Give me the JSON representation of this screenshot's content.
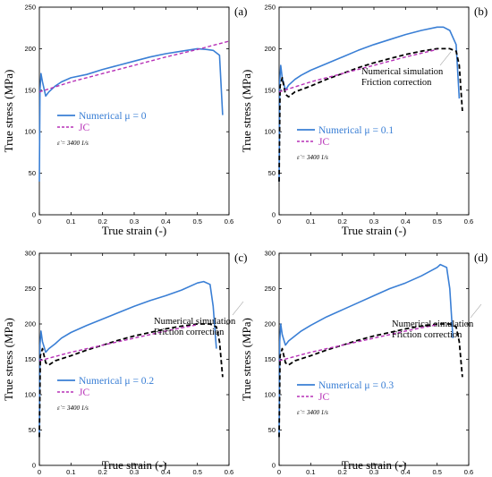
{
  "chart_data": [
    {
      "type": "line",
      "panel": "(a)",
      "xlabel": "True strain (-)",
      "ylabel": "True stress (MPa)",
      "xlim": [
        0,
        0.6
      ],
      "ylim": [
        0,
        250
      ],
      "xticks": [
        "0",
        "0.1",
        "0.2",
        "0.3",
        "0.4",
        "0.5",
        "0.6"
      ],
      "yticks": [
        "0",
        "50",
        "100",
        "150",
        "200",
        "250"
      ],
      "legend": [
        "Numerical μ = 0",
        "JC"
      ],
      "strain_rate": "ε̇ = 3400 1/s",
      "annotation": [],
      "colors": {
        "numerical": "#3a7fd5",
        "jc": "#b730b7",
        "friction": "#000000"
      },
      "series": [
        {
          "name": "Numerical μ = 0",
          "style": "solid",
          "x": [
            0,
            0.002,
            0.005,
            0.01,
            0.02,
            0.03,
            0.05,
            0.07,
            0.1,
            0.15,
            0.2,
            0.25,
            0.3,
            0.35,
            0.4,
            0.45,
            0.5,
            0.53,
            0.55,
            0.57,
            0.58
          ],
          "y": [
            40,
            150,
            170,
            160,
            143,
            148,
            155,
            160,
            165,
            169,
            175,
            180,
            185,
            190,
            194,
            197,
            200,
            199,
            198,
            192,
            120
          ]
        },
        {
          "name": "JC",
          "style": "dashed",
          "x": [
            0,
            0.1,
            0.2,
            0.3,
            0.4,
            0.5,
            0.6
          ],
          "y": [
            148,
            160,
            170,
            180,
            190,
            199,
            209
          ]
        }
      ]
    },
    {
      "type": "line",
      "panel": "(b)",
      "xlabel": "True strain (-)",
      "ylabel": "True stress (MPa)",
      "xlim": [
        0,
        0.6
      ],
      "ylim": [
        0,
        250
      ],
      "xticks": [
        "0",
        "0.1",
        "0.2",
        "0.3",
        "0.4",
        "0.5",
        "0.6"
      ],
      "yticks": [
        "0",
        "50",
        "100",
        "150",
        "200",
        "250"
      ],
      "legend": [
        "Numerical μ = 0.1",
        "JC"
      ],
      "strain_rate": "ε̇ = 3400 1/s",
      "annotation": [
        "Numerical simulation",
        "Friction correction"
      ],
      "colors": {
        "numerical": "#3a7fd5",
        "jc": "#b730b7",
        "friction": "#000000"
      },
      "series": [
        {
          "name": "Numerical μ = 0.1",
          "style": "solid",
          "x": [
            0,
            0.002,
            0.005,
            0.01,
            0.02,
            0.03,
            0.05,
            0.07,
            0.1,
            0.15,
            0.2,
            0.25,
            0.3,
            0.35,
            0.4,
            0.45,
            0.5,
            0.52,
            0.54,
            0.56,
            0.57
          ],
          "y": [
            40,
            160,
            180,
            165,
            150,
            156,
            163,
            168,
            174,
            182,
            190,
            198,
            205,
            211,
            217,
            222,
            226,
            226,
            222,
            205,
            140
          ]
        },
        {
          "name": "Friction correction",
          "style": "dashed",
          "x": [
            0,
            0.003,
            0.01,
            0.02,
            0.03,
            0.05,
            0.1,
            0.15,
            0.2,
            0.25,
            0.3,
            0.35,
            0.4,
            0.45,
            0.5,
            0.52,
            0.54,
            0.56,
            0.57,
            0.58
          ],
          "y": [
            40,
            155,
            165,
            145,
            142,
            148,
            155,
            163,
            170,
            177,
            183,
            188,
            193,
            197,
            200,
            200,
            200,
            197,
            180,
            125
          ]
        },
        {
          "name": "JC",
          "style": "dashed",
          "x": [
            0,
            0.1,
            0.2,
            0.3,
            0.4,
            0.5
          ],
          "y": [
            148,
            160,
            170,
            180,
            190,
            199
          ]
        }
      ]
    },
    {
      "type": "line",
      "panel": "(c)",
      "xlabel": "True strain (-)",
      "ylabel": "True stress (MPa)",
      "xlim": [
        0,
        0.6
      ],
      "ylim": [
        0,
        300
      ],
      "xticks": [
        "0",
        "0.1",
        "0.2",
        "0.3",
        "0.4",
        "0.5",
        "0.6"
      ],
      "yticks": [
        "0",
        "50",
        "100",
        "150",
        "200",
        "250",
        "300"
      ],
      "legend": [
        "Numerical μ = 0.2",
        "JC"
      ],
      "strain_rate": "ε̇ = 3400 1/s",
      "annotation": [
        "Numerical simulation",
        "Friction correction"
      ],
      "colors": {
        "numerical": "#3a7fd5",
        "jc": "#b730b7",
        "friction": "#000000"
      },
      "series": [
        {
          "name": "Numerical μ = 0.2",
          "style": "solid",
          "x": [
            0,
            0.002,
            0.005,
            0.01,
            0.02,
            0.03,
            0.05,
            0.07,
            0.1,
            0.15,
            0.2,
            0.25,
            0.3,
            0.35,
            0.4,
            0.45,
            0.5,
            0.52,
            0.54,
            0.55,
            0.56
          ],
          "y": [
            40,
            170,
            190,
            175,
            160,
            165,
            172,
            180,
            188,
            198,
            207,
            216,
            225,
            233,
            240,
            248,
            258,
            260,
            256,
            225,
            165
          ]
        },
        {
          "name": "Friction correction",
          "style": "dashed",
          "x": [
            0,
            0.003,
            0.01,
            0.02,
            0.03,
            0.05,
            0.1,
            0.15,
            0.2,
            0.25,
            0.3,
            0.35,
            0.4,
            0.45,
            0.5,
            0.52,
            0.54,
            0.56,
            0.57,
            0.58
          ],
          "y": [
            40,
            155,
            165,
            145,
            142,
            148,
            155,
            163,
            170,
            177,
            183,
            188,
            193,
            197,
            200,
            200,
            200,
            196,
            175,
            125
          ]
        },
        {
          "name": "JC",
          "style": "dashed",
          "x": [
            0,
            0.1,
            0.2,
            0.3,
            0.4,
            0.5
          ],
          "y": [
            148,
            160,
            170,
            180,
            190,
            199
          ]
        }
      ]
    },
    {
      "type": "line",
      "panel": "(d)",
      "xlabel": "True strain (-)",
      "ylabel": "True stress (MPa)",
      "xlim": [
        0,
        0.6
      ],
      "ylim": [
        0,
        300
      ],
      "xticks": [
        "0",
        "0.1",
        "0.2",
        "0.3",
        "0.4",
        "0.5",
        "0.6"
      ],
      "yticks": [
        "0",
        "50",
        "100",
        "150",
        "200",
        "250",
        "300"
      ],
      "legend": [
        "Numerical μ = 0.3",
        "JC"
      ],
      "strain_rate": "ε̇ = 3400 1/s",
      "annotation": [
        "Numerical simulation",
        "Friction correction"
      ],
      "colors": {
        "numerical": "#3a7fd5",
        "jc": "#b730b7",
        "friction": "#000000"
      },
      "series": [
        {
          "name": "Numerical μ = 0.3",
          "style": "solid",
          "x": [
            0,
            0.002,
            0.005,
            0.01,
            0.02,
            0.03,
            0.05,
            0.07,
            0.1,
            0.15,
            0.2,
            0.25,
            0.3,
            0.35,
            0.4,
            0.45,
            0.5,
            0.51,
            0.53,
            0.54,
            0.55
          ],
          "y": [
            40,
            175,
            200,
            185,
            170,
            176,
            183,
            190,
            198,
            210,
            220,
            230,
            240,
            250,
            258,
            268,
            280,
            284,
            280,
            250,
            180
          ]
        },
        {
          "name": "Friction correction",
          "style": "dashed",
          "x": [
            0,
            0.003,
            0.01,
            0.02,
            0.03,
            0.05,
            0.1,
            0.15,
            0.2,
            0.25,
            0.3,
            0.35,
            0.4,
            0.45,
            0.5,
            0.52,
            0.54,
            0.56,
            0.57,
            0.58
          ],
          "y": [
            40,
            155,
            165,
            145,
            142,
            148,
            155,
            163,
            170,
            177,
            183,
            188,
            193,
            197,
            200,
            200,
            200,
            196,
            175,
            125
          ]
        },
        {
          "name": "JC",
          "style": "dashed",
          "x": [
            0,
            0.1,
            0.2,
            0.3,
            0.4,
            0.5
          ],
          "y": [
            148,
            160,
            170,
            180,
            190,
            199
          ]
        }
      ]
    }
  ]
}
